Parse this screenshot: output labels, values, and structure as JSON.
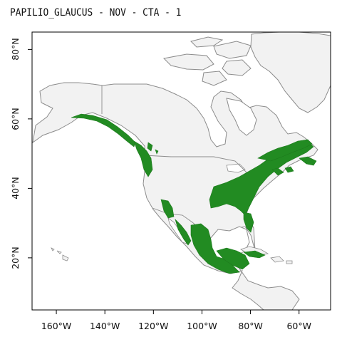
{
  "title": "PAPILIO_GLAUCUS - NOV - CTA - 1",
  "map": {
    "x_axis": {
      "range_lon": [
        -170,
        -47
      ],
      "ticks": [
        {
          "value": -160,
          "label": "160°W"
        },
        {
          "value": -140,
          "label": "140°W"
        },
        {
          "value": -120,
          "label": "120°W"
        },
        {
          "value": -100,
          "label": "100°W"
        },
        {
          "value": -80,
          "label": "80°W"
        },
        {
          "value": -60,
          "label": "60°W"
        }
      ]
    },
    "y_axis": {
      "range_lat": [
        5,
        85
      ],
      "ticks": [
        {
          "value": 20,
          "label": "20°N"
        },
        {
          "value": 40,
          "label": "40°N"
        },
        {
          "value": 60,
          "label": "60°N"
        },
        {
          "value": 80,
          "label": "80°N"
        }
      ]
    },
    "colors": {
      "land": "#f2f2f2",
      "border": "#8c8c8c",
      "ocean": "#ffffff",
      "suitable_habitat": "#228b22"
    }
  }
}
